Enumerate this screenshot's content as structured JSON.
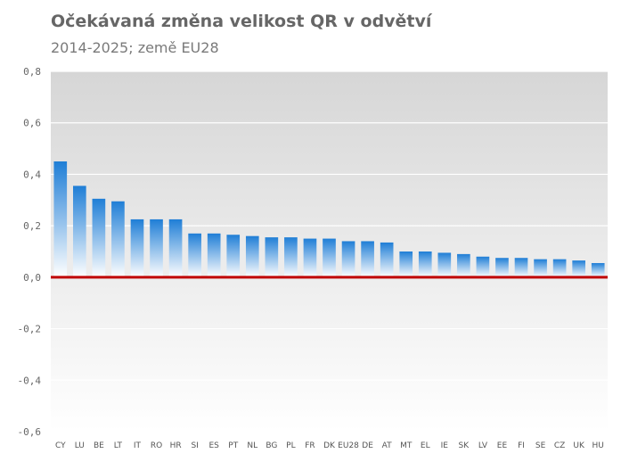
{
  "title": "Očekávaná změna velikost QR v odvětví",
  "subtitle": "2014-2025; země EU28",
  "colors": {
    "bar_top": "#1f7ed6",
    "bar_bottom": "#ffffff",
    "zero_line": "#c00000",
    "plot_top": "#d6d6d6",
    "plot_bottom": "#ffffff",
    "grid": "#ffffff"
  },
  "chart_data": {
    "type": "bar",
    "title": "Očekávaná změna velikost QR v odvětví",
    "subtitle": "2014-2025; země EU28",
    "categories": [
      "CY",
      "LU",
      "BE",
      "LT",
      "IT",
      "RO",
      "HR",
      "SI",
      "ES",
      "PT",
      "NL",
      "BG",
      "PL",
      "FR",
      "DK",
      "EU28",
      "DE",
      "AT",
      "MT",
      "EL",
      "IE",
      "SK",
      "LV",
      "EE",
      "FI",
      "SE",
      "CZ",
      "UK",
      "HU"
    ],
    "values": [
      0.45,
      0.355,
      0.305,
      0.295,
      0.225,
      0.225,
      0.225,
      0.17,
      0.17,
      0.165,
      0.16,
      0.155,
      0.155,
      0.15,
      0.15,
      0.14,
      0.14,
      0.135,
      0.1,
      0.1,
      0.095,
      0.09,
      0.08,
      0.075,
      0.075,
      0.07,
      0.07,
      0.065,
      0.055
    ],
    "ylim": [
      -0.6,
      0.8
    ],
    "yticks": [
      "0,8",
      "0,6",
      "0,4",
      "0,2",
      "0,0",
      "-0,2",
      "-0,4",
      "-0,6"
    ],
    "ytick_values": [
      0.8,
      0.6,
      0.4,
      0.2,
      0.0,
      -0.2,
      -0.4,
      -0.6
    ],
    "grid": true,
    "legend": "none"
  }
}
